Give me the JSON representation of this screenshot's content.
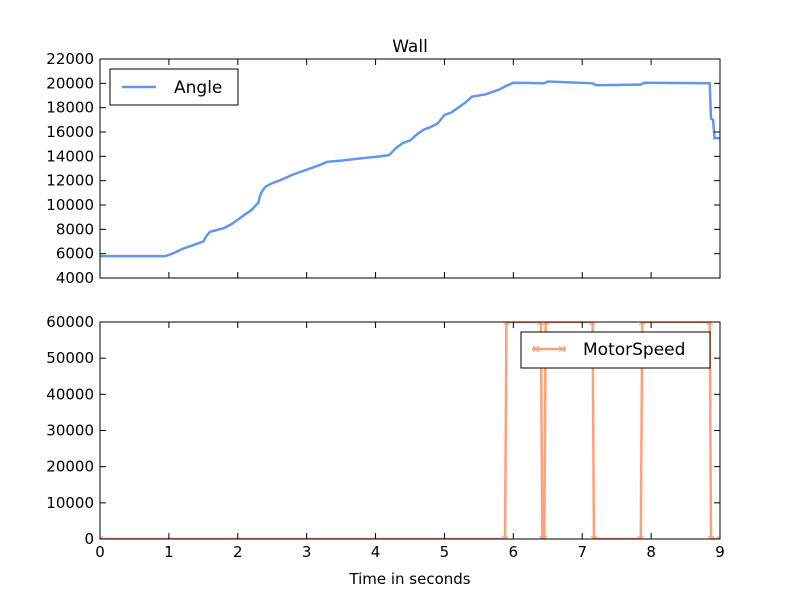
{
  "chart_data": [
    {
      "type": "line",
      "title": "Wall",
      "xlabel": "",
      "ylabel": "",
      "xlim": [
        0,
        9
      ],
      "ylim": [
        4000,
        22000
      ],
      "grid": false,
      "legend": "top-left",
      "yticks": [
        4000,
        6000,
        8000,
        10000,
        12000,
        14000,
        16000,
        18000,
        20000,
        22000
      ],
      "series": [
        {
          "name": "Angle",
          "color": "#6495ed",
          "x": [
            0,
            0.95,
            1.05,
            1.2,
            1.35,
            1.5,
            1.55,
            1.6,
            1.8,
            1.9,
            2.0,
            2.1,
            2.2,
            2.3,
            2.32,
            2.35,
            2.4,
            2.5,
            2.6,
            2.8,
            3.0,
            3.2,
            3.3,
            3.5,
            3.8,
            4.0,
            4.2,
            4.3,
            4.4,
            4.5,
            4.6,
            4.7,
            4.8,
            4.9,
            5.0,
            5.1,
            5.2,
            5.3,
            5.4,
            5.6,
            5.8,
            5.9,
            6.0,
            6.45,
            6.5,
            7.15,
            7.2,
            7.85,
            7.9,
            8.85,
            8.87,
            8.9,
            8.92,
            9.0
          ],
          "y": [
            5800,
            5800,
            6000,
            6400,
            6700,
            7000,
            7500,
            7800,
            8100,
            8400,
            8800,
            9200,
            9600,
            10200,
            10700,
            11100,
            11500,
            11800,
            12000,
            12500,
            12900,
            13300,
            13550,
            13650,
            13850,
            13950,
            14100,
            14700,
            15100,
            15300,
            15800,
            16200,
            16400,
            16700,
            17400,
            17600,
            18000,
            18400,
            18900,
            19100,
            19500,
            19800,
            20050,
            20000,
            20150,
            20000,
            19850,
            19900,
            20050,
            20000,
            17100,
            17000,
            15500,
            15500
          ]
        }
      ]
    },
    {
      "type": "line",
      "title": "",
      "xlabel": "Time in seconds",
      "ylabel": "",
      "xlim": [
        0,
        9
      ],
      "ylim": [
        0,
        60000
      ],
      "grid": false,
      "legend": "top-right",
      "xticks": [
        0,
        1,
        2,
        3,
        4,
        5,
        6,
        7,
        8,
        9
      ],
      "yticks": [
        0,
        10000,
        20000,
        30000,
        40000,
        50000,
        60000
      ],
      "series": [
        {
          "name": "MotorSpeed",
          "color": "#ffa07a",
          "marker": "x",
          "x": [
            0,
            5.88,
            5.9,
            6.4,
            6.42,
            6.45,
            6.47,
            7.15,
            7.17,
            7.85,
            7.87,
            8.85,
            8.87,
            9.0
          ],
          "y": [
            0,
            0,
            60000,
            60000,
            0,
            0,
            60000,
            60000,
            0,
            0,
            60000,
            60000,
            0,
            0
          ]
        }
      ]
    }
  ]
}
